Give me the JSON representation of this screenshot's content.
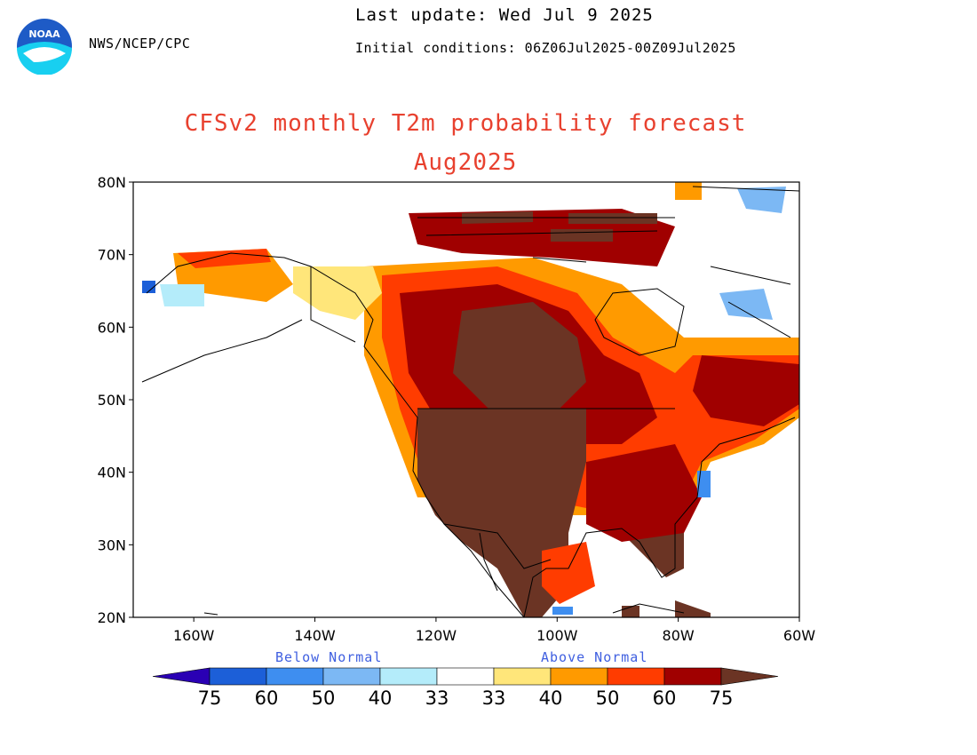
{
  "header": {
    "agency": "NWS/NCEP/CPC",
    "last_update": "Last update: Wed Jul 9 2025",
    "initial_conditions": "Initial conditions: 06Z06Jul2025-00Z09Jul2025",
    "logo_text": "NOAA"
  },
  "title": {
    "line1": "CFSv2 monthly T2m probability forecast",
    "line2": "Aug2025"
  },
  "map": {
    "lat_labels": [
      "80N",
      "70N",
      "60N",
      "50N",
      "40N",
      "30N",
      "20N"
    ],
    "lon_labels": [
      "160W",
      "140W",
      "120W",
      "100W",
      "80W",
      "60W"
    ],
    "extent": {
      "lon": [
        -170,
        -60
      ],
      "lat": [
        20,
        80
      ]
    }
  },
  "legend": {
    "below_label": "Below Normal",
    "above_label": "Above Normal",
    "values": [
      "75",
      "60",
      "50",
      "40",
      "33",
      "33",
      "40",
      "50",
      "60",
      "75"
    ],
    "colors": {
      "below_75": "#2a00b4",
      "below_60": "#1c5fd8",
      "below_50": "#3e8ef0",
      "below_40": "#7cb8f4",
      "below_33": "#b4ecfa",
      "normal": "#ffffff",
      "above_33": "#ffe67a",
      "above_40": "#ff9a00",
      "above_50": "#ff3c00",
      "above_60": "#a00000",
      "above_75": "#6b3424"
    }
  }
}
